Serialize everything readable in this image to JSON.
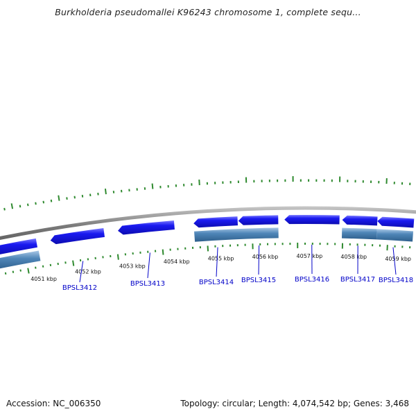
{
  "title": "Burkholderia pseudomallei K96243 chromosome 1, complete sequ...",
  "accession_label": "Accession: NC_006350",
  "summary_label": "Topology: circular; Length: 4,074,542 bp; Genes: 3,468",
  "colors": {
    "backbone": "#8a8a8a",
    "gene_fill": "#1a1af0",
    "gene_highlight": "#6a6aff",
    "cds_fill": "#4f86b8",
    "cds_highlight": "#9cc0e0",
    "tick": "#2f8a2f",
    "label_link": "#0000c8",
    "scale_text": "#111111"
  },
  "scale_labels": [
    {
      "text": "4051 kbp",
      "kbp": 4051
    },
    {
      "text": "4052 kbp",
      "kbp": 4052
    },
    {
      "text": "4053 kbp",
      "kbp": 4053
    },
    {
      "text": "4054 kbp",
      "kbp": 4054
    },
    {
      "text": "4055 kbp",
      "kbp": 4055
    },
    {
      "text": "4056 kbp",
      "kbp": 4056
    },
    {
      "text": "4057 kbp",
      "kbp": 4057
    },
    {
      "text": "4058 kbp",
      "kbp": 4058
    },
    {
      "text": "4059 kbp",
      "kbp": 4059
    }
  ],
  "genes": [
    {
      "label": "BPSL3412",
      "strand": "-"
    },
    {
      "label": "BPSL3413",
      "strand": "-"
    },
    {
      "label": "BPSL3414",
      "strand": "-"
    },
    {
      "label": "BPSL3415",
      "strand": "-"
    },
    {
      "label": "BPSL3416",
      "strand": "-"
    },
    {
      "label": "BPSL3417",
      "strand": "-"
    },
    {
      "label": "BPSL3418",
      "strand": "-"
    }
  ]
}
